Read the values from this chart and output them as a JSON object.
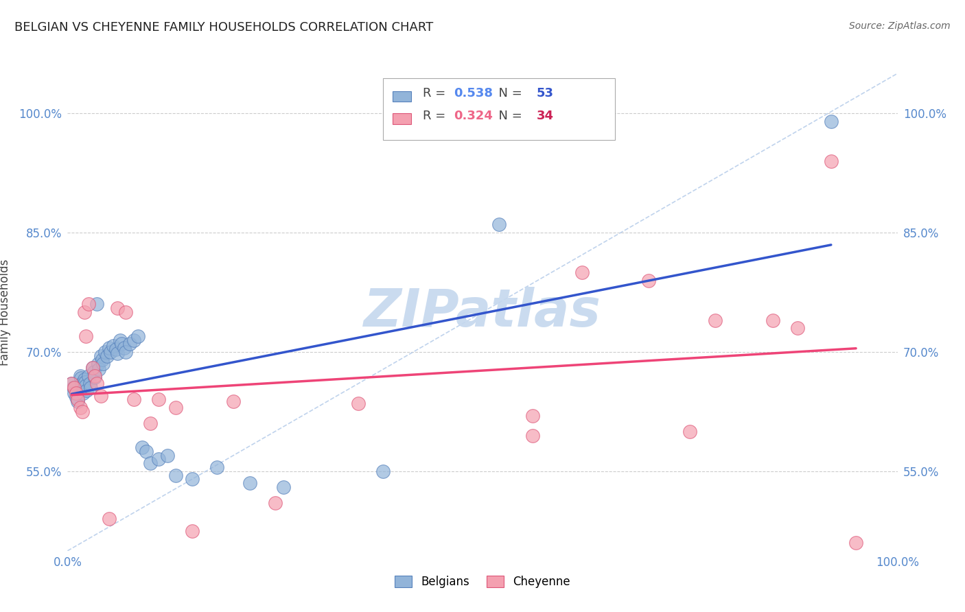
{
  "title": "BELGIAN VS CHEYENNE FAMILY HOUSEHOLDS CORRELATION CHART",
  "source": "Source: ZipAtlas.com",
  "ylabel": "Family Households",
  "xlim": [
    0.0,
    1.0
  ],
  "ylim": [
    0.45,
    1.05
  ],
  "yticks": [
    0.55,
    0.7,
    0.85,
    1.0
  ],
  "ytick_labels": [
    "55.0%",
    "70.0%",
    "85.0%",
    "100.0%"
  ],
  "xticks": [
    0.0,
    1.0
  ],
  "xtick_labels": [
    "0.0%",
    "100.0%"
  ],
  "belgian_R": 0.538,
  "belgian_N": 53,
  "cheyenne_R": 0.324,
  "cheyenne_N": 34,
  "belgian_color": "#92b4d9",
  "cheyenne_color": "#f4a0b0",
  "belgian_edge": "#5580bb",
  "cheyenne_edge": "#dd5577",
  "line_color_blue": "#3355cc",
  "line_color_pink": "#ee4477",
  "diagonal_color": "#b0c8e8",
  "title_color": "#222222",
  "source_color": "#666666",
  "grid_color": "#cccccc",
  "axis_tick_color": "#5588cc",
  "background_color": "#ffffff",
  "belgians_x": [
    0.005,
    0.007,
    0.008,
    0.01,
    0.012,
    0.015,
    0.016,
    0.017,
    0.018,
    0.019,
    0.02,
    0.021,
    0.022,
    0.023,
    0.025,
    0.027,
    0.028,
    0.03,
    0.032,
    0.033,
    0.035,
    0.037,
    0.038,
    0.04,
    0.042,
    0.043,
    0.045,
    0.048,
    0.05,
    0.052,
    0.055,
    0.058,
    0.06,
    0.063,
    0.065,
    0.068,
    0.07,
    0.075,
    0.08,
    0.085,
    0.09,
    0.095,
    0.1,
    0.11,
    0.12,
    0.13,
    0.15,
    0.18,
    0.22,
    0.26,
    0.38,
    0.52,
    0.92
  ],
  "belgians_y": [
    0.66,
    0.655,
    0.648,
    0.643,
    0.638,
    0.67,
    0.667,
    0.66,
    0.655,
    0.648,
    0.665,
    0.662,
    0.658,
    0.652,
    0.67,
    0.66,
    0.655,
    0.68,
    0.675,
    0.668,
    0.76,
    0.685,
    0.678,
    0.695,
    0.69,
    0.685,
    0.7,
    0.695,
    0.705,
    0.7,
    0.708,
    0.703,
    0.698,
    0.715,
    0.71,
    0.705,
    0.7,
    0.71,
    0.715,
    0.72,
    0.58,
    0.575,
    0.56,
    0.565,
    0.57,
    0.545,
    0.54,
    0.555,
    0.535,
    0.53,
    0.55,
    0.86,
    0.99
  ],
  "cheyenne_x": [
    0.005,
    0.008,
    0.01,
    0.012,
    0.015,
    0.018,
    0.02,
    0.022,
    0.025,
    0.03,
    0.033,
    0.035,
    0.04,
    0.05,
    0.06,
    0.07,
    0.08,
    0.1,
    0.11,
    0.13,
    0.15,
    0.2,
    0.25,
    0.35,
    0.56,
    0.62,
    0.7,
    0.75,
    0.85,
    0.92,
    0.56,
    0.78,
    0.88,
    0.95
  ],
  "cheyenne_y": [
    0.66,
    0.655,
    0.648,
    0.64,
    0.63,
    0.625,
    0.75,
    0.72,
    0.76,
    0.68,
    0.67,
    0.66,
    0.645,
    0.49,
    0.755,
    0.75,
    0.64,
    0.61,
    0.64,
    0.63,
    0.475,
    0.638,
    0.51,
    0.635,
    0.595,
    0.8,
    0.79,
    0.6,
    0.74,
    0.94,
    0.62,
    0.74,
    0.73,
    0.46
  ],
  "watermark": "ZIPatlas",
  "watermark_color": "#c5d8ee",
  "legend_R_color_blue": "#5588ee",
  "legend_N_color_blue": "#3355cc",
  "legend_R_color_pink": "#ee6688",
  "legend_N_color_pink": "#cc2255"
}
